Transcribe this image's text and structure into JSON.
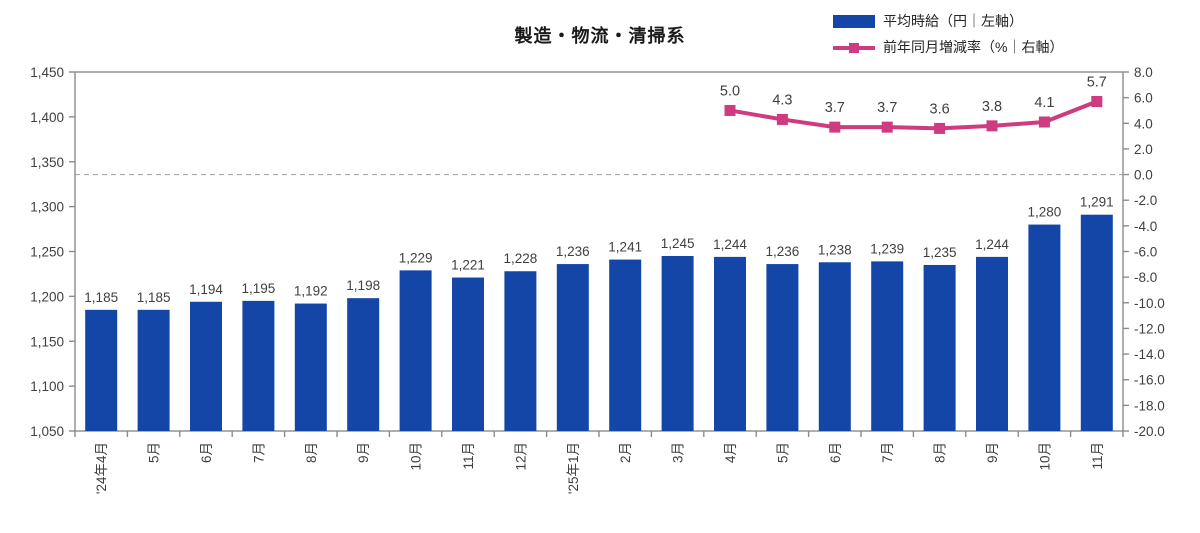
{
  "title": "製造・物流・清掃系",
  "legend": {
    "items": [
      {
        "label": "平均時給（円｜左軸）",
        "type": "bar"
      },
      {
        "label": "前年同月増減率（%｜右軸）",
        "type": "line"
      }
    ]
  },
  "colors": {
    "bar": "#1346A6",
    "line": "#CE3B7E",
    "axis": "#8C8C8C",
    "grid_dashed": "#ABABAB",
    "label_text": "#404040",
    "title_text": "#1A1A1A"
  },
  "chart_data": {
    "type": "combo",
    "title": "製造・物流・清掃系",
    "categories": [
      "'24年4月",
      "5月",
      "6月",
      "7月",
      "8月",
      "9月",
      "10月",
      "11月",
      "12月",
      "'25年1月",
      "2月",
      "3月",
      "4月",
      "5月",
      "6月",
      "7月",
      "8月",
      "9月",
      "10月",
      "11月"
    ],
    "series": [
      {
        "name": "平均時給（円｜左軸）",
        "type": "bar",
        "axis": "left",
        "values": [
          1185,
          1185,
          1194,
          1195,
          1192,
          1198,
          1229,
          1221,
          1228,
          1236,
          1241,
          1245,
          1244,
          1236,
          1238,
          1239,
          1235,
          1244,
          1280,
          1291
        ]
      },
      {
        "name": "前年同月増減率（%｜右軸）",
        "type": "line",
        "axis": "right",
        "values": [
          null,
          null,
          null,
          null,
          null,
          null,
          null,
          null,
          null,
          null,
          null,
          null,
          5.0,
          4.3,
          3.7,
          3.7,
          3.6,
          3.8,
          4.1,
          5.7
        ]
      }
    ],
    "left_axis": {
      "min": 1050,
      "max": 1450,
      "step": 50
    },
    "right_axis": {
      "min": -20.0,
      "max": 8.0,
      "step": 2.0
    },
    "zero_gridline": {
      "axis": "right",
      "value": 0.0,
      "style": "dashed"
    },
    "legend_position": "top-right",
    "grid": "off"
  }
}
